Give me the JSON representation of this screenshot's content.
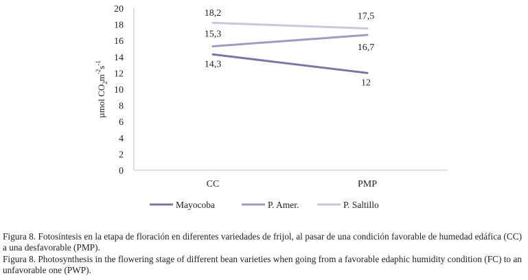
{
  "chart_data": {
    "type": "line",
    "categories": [
      "CC",
      "PMP"
    ],
    "series": [
      {
        "name": "Mayocoba",
        "values": [
          14.3,
          12
        ],
        "labels": [
          "14,3",
          "12"
        ],
        "color": "#7a73ad"
      },
      {
        "name": "P. Amer.",
        "values": [
          15.3,
          16.7
        ],
        "labels": [
          "15,3",
          "16,7"
        ],
        "color": "#9f99c9"
      },
      {
        "name": "P. Saltillo",
        "values": [
          18.2,
          17.5
        ],
        "labels": [
          "18,2",
          "17,5"
        ],
        "color": "#c9c5e2"
      }
    ],
    "ylim": [
      0,
      20
    ],
    "yticks": [
      0,
      2,
      4,
      6,
      8,
      10,
      12,
      14,
      16,
      18,
      20
    ],
    "ylabel_prefix": "µmol CO",
    "ylabel_sub": "2",
    "ylabel_mid": "m",
    "ylabel_sup1": "-2",
    "ylabel_mid2": "s",
    "ylabel_sup2": "-1",
    "legend_position": "bottom"
  },
  "captions": {
    "es": "Figura 8. Fotosíntesis en la etapa de floración en diferentes variedades de frijol, al pasar de una condición favorable de humedad edáfica (CC) a una desfavorable (PMP).",
    "en": "Figura 8. Photosynthesis in the flowering stage of different bean varieties when going from a favorable edaphic humidity condition (FC) to an unfavorable one (PWP)."
  }
}
